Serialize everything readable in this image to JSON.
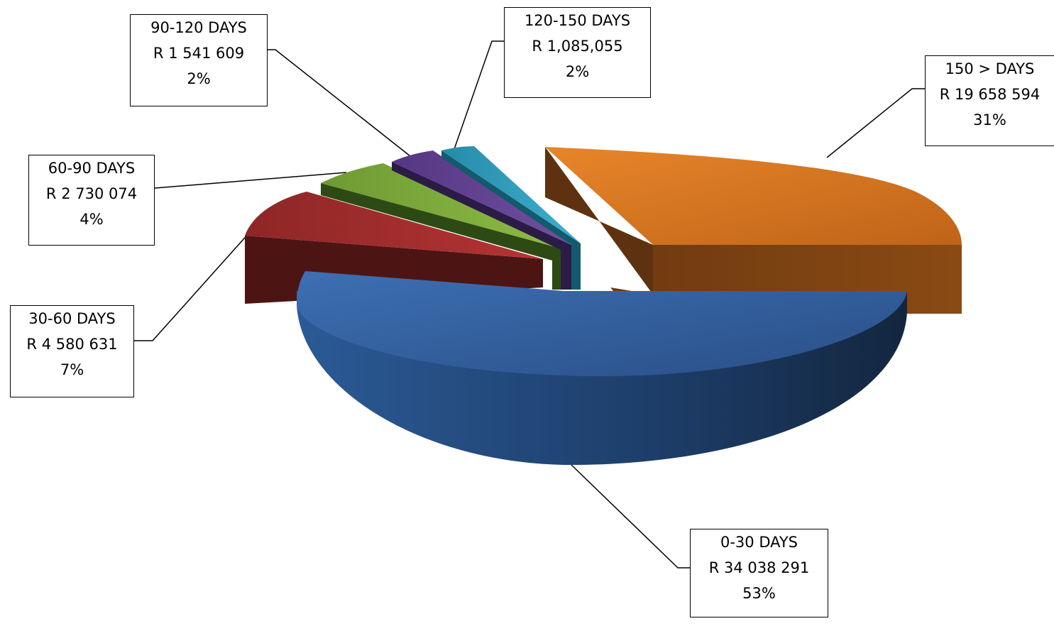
{
  "chart_data": {
    "type": "pie",
    "title": "",
    "slices": [
      {
        "category": "0-30 DAYS",
        "value_label": "R 34 038 291",
        "percent_label": "53%",
        "value": 34038291,
        "color": "#2f5e9e"
      },
      {
        "category": "30-60 DAYS",
        "value_label": "R 4 580 631",
        "percent_label": "7%",
        "value": 4580631,
        "color": "#9a2b2b"
      },
      {
        "category": "60-90 DAYS",
        "value_label": "R 2 730 074",
        "percent_label": "4%",
        "value": 2730074,
        "color": "#79a33a"
      },
      {
        "category": "90-120 DAYS",
        "value_label": "R 1 541 609",
        "percent_label": "2%",
        "value": 1541609,
        "color": "#5d3e8c"
      },
      {
        "category": "120-150 DAYS",
        "value_label": "R 1,085,055",
        "percent_label": "2%",
        "value": 1085055,
        "color": "#2e9ab8"
      },
      {
        "category": "150 > DAYS",
        "value_label": "R 19 658 594",
        "percent_label": "31%",
        "value": 19658594,
        "color": "#e07b22"
      }
    ]
  }
}
